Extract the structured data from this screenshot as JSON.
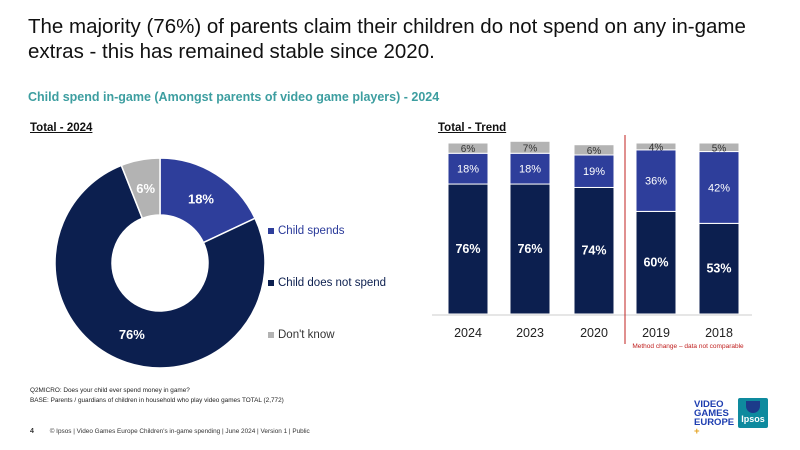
{
  "headline": "The majority (76%) of parents claim their children do not spend on any in-game extras - this has remained stable since 2020.",
  "subheadline": "Child spend in-game (Amongst parents of video game players) - 2024",
  "left_section_title": "Total - 2024",
  "right_section_title": "Total - Trend",
  "legend": [
    {
      "label": "Child spends",
      "color": "#2e3e9b"
    },
    {
      "label": "Child does not spend",
      "color": "#0c1f4f"
    },
    {
      "label": "Don't know",
      "color": "#b3b3b3"
    }
  ],
  "chart_data": [
    {
      "type": "pie",
      "style": "donut",
      "categories": [
        "Child spends",
        "Child does not spend",
        "Don't know"
      ],
      "values": [
        18,
        76,
        6
      ],
      "labels": [
        "18%",
        "76%",
        "6%"
      ],
      "colors": [
        "#2e3e9b",
        "#0c1f4f",
        "#b3b3b3"
      ]
    },
    {
      "type": "bar",
      "stacked": true,
      "categories": [
        "2024",
        "2023",
        "2020",
        "2019",
        "2018"
      ],
      "series": [
        {
          "name": "Child does not spend",
          "values": [
            76,
            76,
            74,
            60,
            53
          ],
          "color": "#0c1f4f"
        },
        {
          "name": "Child spends",
          "values": [
            18,
            18,
            19,
            36,
            42
          ],
          "color": "#2e3e9b"
        },
        {
          "name": "Don't know",
          "values": [
            6,
            7,
            6,
            4,
            5
          ],
          "color": "#b3b3b3"
        }
      ],
      "ylim": [
        0,
        100
      ],
      "grid": false,
      "annotation": "Method change – data not comparable",
      "annotation_color": "#c0201f"
    }
  ],
  "notes": [
    "Q2MICRO: Does your child ever spend money in game?",
    "BASE: Parents / guardians of children in household who play video games TOTAL (2,772)"
  ],
  "footer": {
    "page_number": "4",
    "text": "© Ipsos | Video Games Europe Children's in-game spending | June 2024 | Version 1 | Public"
  },
  "logos": {
    "vge": [
      "VIDEO",
      "GAMES",
      "EUROPE",
      "+"
    ],
    "ipsos": "Ipsos"
  }
}
